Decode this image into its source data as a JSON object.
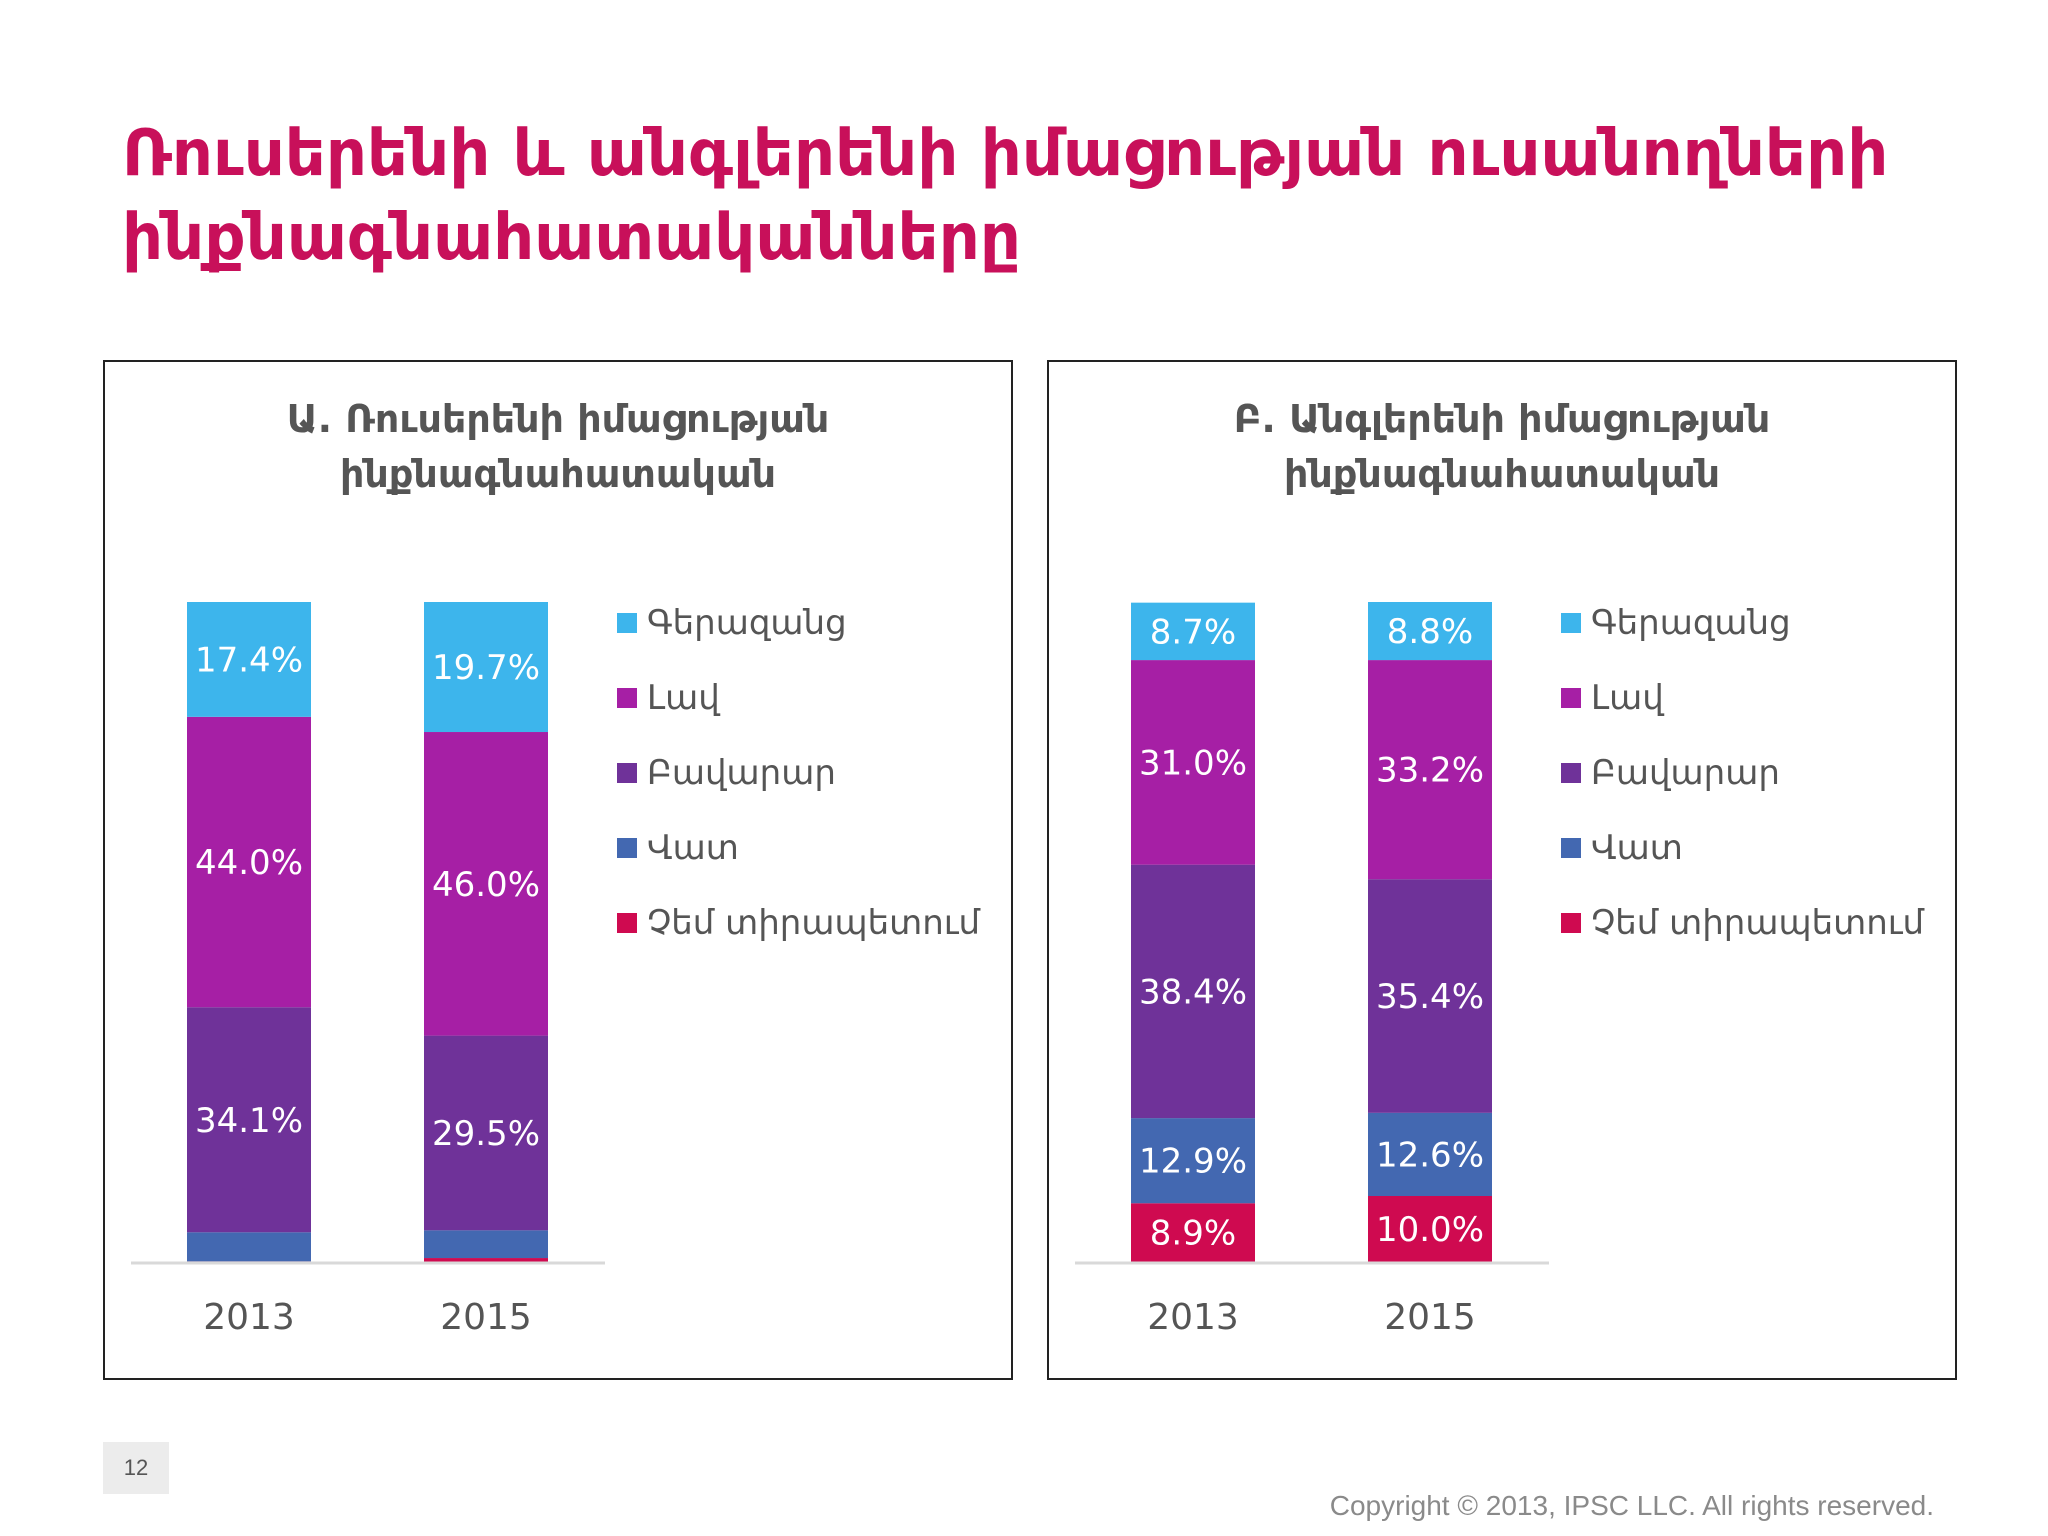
{
  "slide": {
    "title_line1": "Ռուսերենի և անգլերենի իմացության ուսանողների",
    "title_line2": "ինքնագնահատականները",
    "page_number": "12",
    "copyright": "Copyright © 2013, IPSC LLC. All rights reserved."
  },
  "colors": {
    "title": "#c8105a",
    "excellent": "#3db5ec",
    "good": "#a61fa5",
    "satisfactory": "#6f3299",
    "poor": "#4368b1",
    "no_command": "#cf0a50"
  },
  "chart_data": [
    {
      "type": "bar",
      "stacked": true,
      "title_line1": "Ա. Ռուսերենի իմացության",
      "title_line2": "ինքնագնահատական",
      "categories": [
        "2013",
        "2015"
      ],
      "ylim": [
        0,
        100
      ],
      "legend_position": "right",
      "series": [
        {
          "name": "Չեմ տիրապետում",
          "values": [
            0.1,
            0.6
          ],
          "labels": [
            "",
            ""
          ],
          "color": "#cf0a50"
        },
        {
          "name": "Վատ",
          "values": [
            4.4,
            4.2
          ],
          "labels": [
            "",
            ""
          ],
          "color": "#4368b1"
        },
        {
          "name": "Բավարար",
          "values": [
            34.1,
            29.5
          ],
          "labels": [
            "34.1%",
            "29.5%"
          ],
          "color": "#6f3299"
        },
        {
          "name": "Լավ",
          "values": [
            44.0,
            46.0
          ],
          "labels": [
            "44.0%",
            "46.0%"
          ],
          "color": "#a61fa5"
        },
        {
          "name": "Գերազանց",
          "values": [
            17.4,
            19.7
          ],
          "labels": [
            "17.4%",
            "19.7%"
          ],
          "color": "#3db5ec"
        }
      ]
    },
    {
      "type": "bar",
      "stacked": true,
      "title_line1": "Բ. Անգլերենի իմացության",
      "title_line2": "ինքնագնահատական",
      "categories": [
        "2013",
        "2015"
      ],
      "ylim": [
        0,
        100
      ],
      "legend_position": "right",
      "series": [
        {
          "name": "Չեմ տիրապետում",
          "values": [
            8.9,
            10.0
          ],
          "labels": [
            "8.9%",
            "10.0%"
          ],
          "color": "#cf0a50"
        },
        {
          "name": "Վատ",
          "values": [
            12.9,
            12.6
          ],
          "labels": [
            "12.9%",
            "12.6%"
          ],
          "color": "#4368b1"
        },
        {
          "name": "Բավարար",
          "values": [
            38.4,
            35.4
          ],
          "labels": [
            "38.4%",
            "35.4%"
          ],
          "color": "#6f3299"
        },
        {
          "name": "Լավ",
          "values": [
            31.0,
            33.2
          ],
          "labels": [
            "31.0%",
            "33.2%"
          ],
          "color": "#a61fa5"
        },
        {
          "name": "Գերազանց",
          "values": [
            8.7,
            8.8
          ],
          "labels": [
            "8.7%",
            "8.8%"
          ],
          "color": "#3db5ec"
        }
      ]
    }
  ]
}
